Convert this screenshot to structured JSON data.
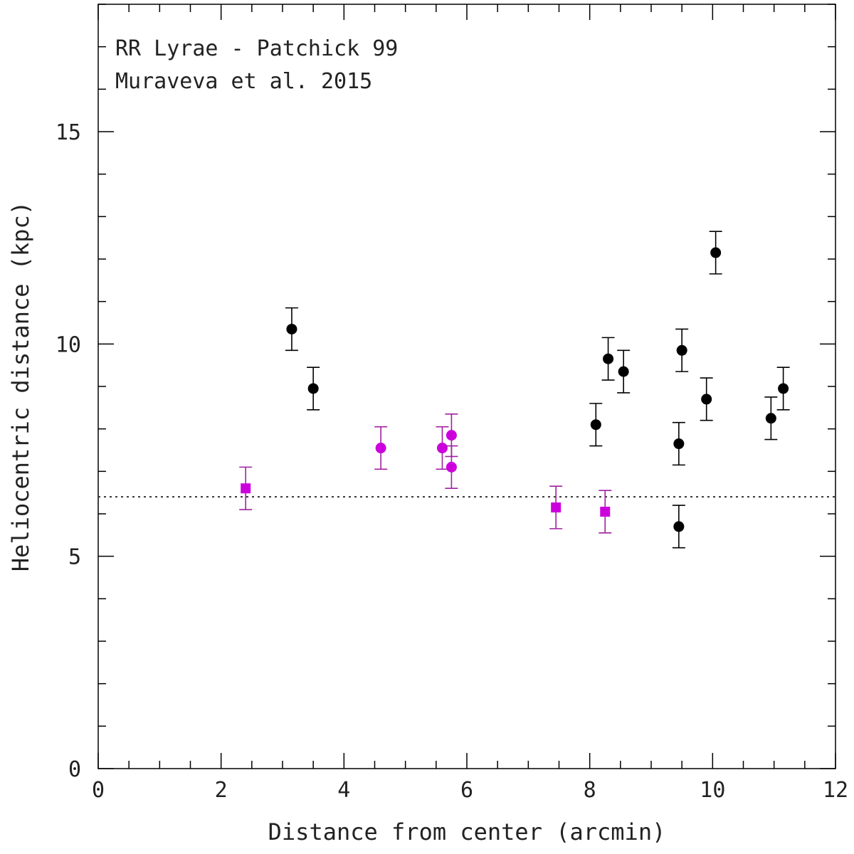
{
  "chart_data": {
    "type": "scatter",
    "title": "",
    "xlabel": "Distance from center (arcmin)",
    "ylabel": "Heliocentric distance (kpc)",
    "xlim": [
      0,
      12
    ],
    "ylim": [
      0,
      18
    ],
    "xticks": [
      0,
      2,
      4,
      6,
      8,
      10,
      12
    ],
    "yticks": [
      0,
      5,
      10,
      15
    ],
    "grid": false,
    "annotations": [
      "RR Lyrae - Patchick 99",
      "Muraveva et al. 2015"
    ],
    "reference_line": {
      "y": 6.4,
      "style": "dotted"
    },
    "colors": {
      "black": "#000000",
      "magenta": "#cc00dd",
      "errorbar_magenta": "#a020a0"
    },
    "series": [
      {
        "name": "black circles",
        "marker": "circle",
        "color": "#000000",
        "points": [
          {
            "x": 3.15,
            "y": 10.35,
            "err": 0.5
          },
          {
            "x": 3.5,
            "y": 8.95,
            "err": 0.5
          },
          {
            "x": 8.1,
            "y": 8.1,
            "err": 0.5
          },
          {
            "x": 8.3,
            "y": 9.65,
            "err": 0.5
          },
          {
            "x": 8.55,
            "y": 9.35,
            "err": 0.5
          },
          {
            "x": 9.45,
            "y": 7.65,
            "err": 0.5
          },
          {
            "x": 9.5,
            "y": 9.85,
            "err": 0.5
          },
          {
            "x": 9.45,
            "y": 5.7,
            "err": 0.5
          },
          {
            "x": 9.9,
            "y": 8.7,
            "err": 0.5
          },
          {
            "x": 10.05,
            "y": 12.15,
            "err": 0.5
          },
          {
            "x": 10.95,
            "y": 8.25,
            "err": 0.5
          },
          {
            "x": 11.15,
            "y": 8.95,
            "err": 0.5
          }
        ]
      },
      {
        "name": "magenta circles",
        "marker": "circle",
        "color": "#cc00dd",
        "points": [
          {
            "x": 4.6,
            "y": 7.55,
            "err": 0.5
          },
          {
            "x": 5.6,
            "y": 7.55,
            "err": 0.5
          },
          {
            "x": 5.75,
            "y": 7.85,
            "err": 0.5
          },
          {
            "x": 5.75,
            "y": 7.1,
            "err": 0.5
          }
        ]
      },
      {
        "name": "magenta squares",
        "marker": "square",
        "color": "#cc00dd",
        "points": [
          {
            "x": 2.4,
            "y": 6.6,
            "err": 0.5
          },
          {
            "x": 7.45,
            "y": 6.15,
            "err": 0.5
          },
          {
            "x": 8.25,
            "y": 6.05,
            "err": 0.5
          }
        ]
      }
    ]
  }
}
